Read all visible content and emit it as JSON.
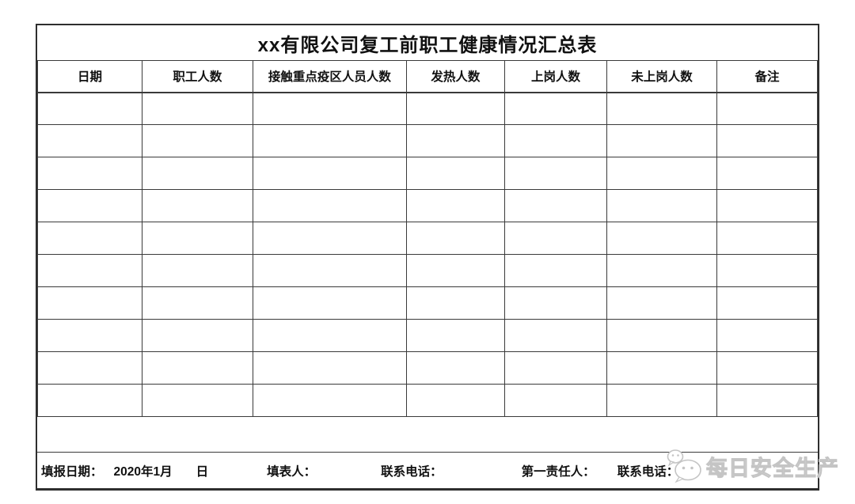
{
  "page": {
    "background_color": "#ffffff",
    "line_color": "#3a3a3a",
    "text_color": "#111111"
  },
  "title": "xx有限公司复工前职工健康情况汇总表",
  "table": {
    "columns": [
      "日期",
      "职工人数",
      "接触重点疫区人员人数",
      "发热人数",
      "上岗人数",
      "未上岗人数",
      "备注"
    ],
    "empty_row_count": 10,
    "empty_cell_value": ""
  },
  "footer": {
    "report_date_label": "填报日期：",
    "report_date_value": "2020年1月",
    "day_placeholder": "日",
    "preparer_label": "填表人：",
    "phone_label_1": "联系电话：",
    "first_responsible_label": "第一责任人：",
    "phone_label_2": "联系电话："
  },
  "watermark": {
    "icon": "wechat-icon",
    "text": "每日安全生产",
    "color": "#c4c4c4"
  }
}
